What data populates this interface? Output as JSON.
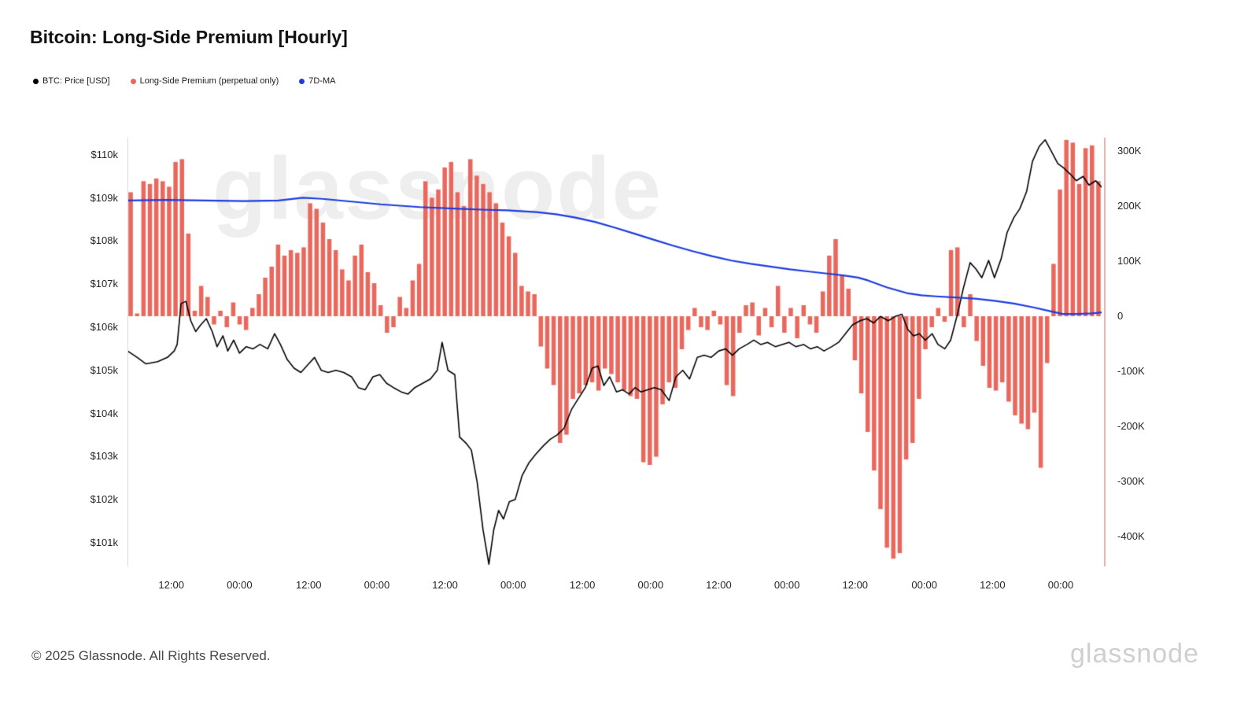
{
  "title": "Bitcoin: Long-Side Premium [Hourly]",
  "watermark": "glassnode",
  "footer": {
    "copyright": "© 2025 Glassnode. All Rights Reserved.",
    "brand": "glassnode"
  },
  "chart_data": {
    "type": "mixed",
    "title": "Bitcoin: Long-Side Premium [Hourly]",
    "grid": false,
    "legend_position": "top-left",
    "left_axis": {
      "title": "BTC Price [USD, thousands]",
      "min": 100.45,
      "max": 110.4,
      "ticks": [
        {
          "label": "$110k",
          "value": 110
        },
        {
          "label": "$109k",
          "value": 109
        },
        {
          "label": "$108k",
          "value": 108
        },
        {
          "label": "$107k",
          "value": 107
        },
        {
          "label": "$106k",
          "value": 106
        },
        {
          "label": "$105k",
          "value": 105
        },
        {
          "label": "$104k",
          "value": 104
        },
        {
          "label": "$103k",
          "value": 103
        },
        {
          "label": "$102k",
          "value": 102
        },
        {
          "label": "$101k",
          "value": 101
        }
      ]
    },
    "right_axis": {
      "title": "Long-Side Premium [K USD]",
      "min": -454,
      "max": 324,
      "ticks": [
        {
          "label": "300K",
          "value": 300
        },
        {
          "label": "200K",
          "value": 200
        },
        {
          "label": "100K",
          "value": 100
        },
        {
          "label": "0",
          "value": 0
        },
        {
          "label": "-100K",
          "value": -100
        },
        {
          "label": "-200K",
          "value": -200
        },
        {
          "label": "-300K",
          "value": -300
        },
        {
          "label": "-400K",
          "value": -400
        }
      ]
    },
    "x_axis": {
      "ticks": [
        {
          "label": "12:00",
          "pos": 0.045
        },
        {
          "label": "00:00",
          "pos": 0.115
        },
        {
          "label": "12:00",
          "pos": 0.186
        },
        {
          "label": "00:00",
          "pos": 0.256
        },
        {
          "label": "12:00",
          "pos": 0.326
        },
        {
          "label": "00:00",
          "pos": 0.396
        },
        {
          "label": "12:00",
          "pos": 0.467
        },
        {
          "label": "00:00",
          "pos": 0.537
        },
        {
          "label": "12:00",
          "pos": 0.607
        },
        {
          "label": "00:00",
          "pos": 0.677
        },
        {
          "label": "12:00",
          "pos": 0.747
        },
        {
          "label": "00:00",
          "pos": 0.818
        },
        {
          "label": "12:00",
          "pos": 0.888
        },
        {
          "label": "00:00",
          "pos": 0.958
        }
      ]
    },
    "series": [
      {
        "name": "BTC: Price [USD]",
        "type": "line",
        "axis": "left",
        "color": "#000000",
        "width": 1.6,
        "points": [
          [
            0,
            105.45
          ],
          [
            0.01,
            105.3
          ],
          [
            0.019,
            105.15
          ],
          [
            0.031,
            105.2
          ],
          [
            0.041,
            105.3
          ],
          [
            0.048,
            105.45
          ],
          [
            0.051,
            105.6
          ],
          [
            0.055,
            106.55
          ],
          [
            0.06,
            106.6
          ],
          [
            0.065,
            106.15
          ],
          [
            0.07,
            105.9
          ],
          [
            0.075,
            106.05
          ],
          [
            0.081,
            106.2
          ],
          [
            0.087,
            105.9
          ],
          [
            0.092,
            105.55
          ],
          [
            0.098,
            105.8
          ],
          [
            0.103,
            105.45
          ],
          [
            0.109,
            105.7
          ],
          [
            0.115,
            105.4
          ],
          [
            0.122,
            105.55
          ],
          [
            0.129,
            105.5
          ],
          [
            0.136,
            105.6
          ],
          [
            0.144,
            105.5
          ],
          [
            0.151,
            105.85
          ],
          [
            0.157,
            105.6
          ],
          [
            0.164,
            105.25
          ],
          [
            0.171,
            105.05
          ],
          [
            0.178,
            104.95
          ],
          [
            0.186,
            105.15
          ],
          [
            0.192,
            105.3
          ],
          [
            0.199,
            105.0
          ],
          [
            0.206,
            104.95
          ],
          [
            0.214,
            105.0
          ],
          [
            0.222,
            104.95
          ],
          [
            0.23,
            104.85
          ],
          [
            0.237,
            104.6
          ],
          [
            0.244,
            104.55
          ],
          [
            0.252,
            104.85
          ],
          [
            0.259,
            104.9
          ],
          [
            0.266,
            104.7
          ],
          [
            0.273,
            104.6
          ],
          [
            0.281,
            104.5
          ],
          [
            0.288,
            104.45
          ],
          [
            0.295,
            104.6
          ],
          [
            0.303,
            104.7
          ],
          [
            0.311,
            104.8
          ],
          [
            0.318,
            105.0
          ],
          [
            0.323,
            105.65
          ],
          [
            0.329,
            105.0
          ],
          [
            0.336,
            104.9
          ],
          [
            0.341,
            103.45
          ],
          [
            0.348,
            103.3
          ],
          [
            0.353,
            103.15
          ],
          [
            0.359,
            102.4
          ],
          [
            0.365,
            101.3
          ],
          [
            0.371,
            100.5
          ],
          [
            0.376,
            101.3
          ],
          [
            0.381,
            101.75
          ],
          [
            0.386,
            101.55
          ],
          [
            0.392,
            101.95
          ],
          [
            0.398,
            102.0
          ],
          [
            0.405,
            102.55
          ],
          [
            0.412,
            102.85
          ],
          [
            0.419,
            103.05
          ],
          [
            0.427,
            103.25
          ],
          [
            0.434,
            103.4
          ],
          [
            0.441,
            103.5
          ],
          [
            0.448,
            103.65
          ],
          [
            0.456,
            104.1
          ],
          [
            0.463,
            104.35
          ],
          [
            0.47,
            104.6
          ],
          [
            0.477,
            105.05
          ],
          [
            0.483,
            105.1
          ],
          [
            0.489,
            104.65
          ],
          [
            0.495,
            104.85
          ],
          [
            0.502,
            104.5
          ],
          [
            0.508,
            104.55
          ],
          [
            0.515,
            104.45
          ],
          [
            0.521,
            104.6
          ],
          [
            0.527,
            104.5
          ],
          [
            0.534,
            104.55
          ],
          [
            0.541,
            104.6
          ],
          [
            0.548,
            104.55
          ],
          [
            0.556,
            104.3
          ],
          [
            0.563,
            104.85
          ],
          [
            0.57,
            105.0
          ],
          [
            0.577,
            104.8
          ],
          [
            0.585,
            105.3
          ],
          [
            0.592,
            105.35
          ],
          [
            0.599,
            105.3
          ],
          [
            0.607,
            105.45
          ],
          [
            0.614,
            105.5
          ],
          [
            0.621,
            105.35
          ],
          [
            0.628,
            105.5
          ],
          [
            0.636,
            105.6
          ],
          [
            0.643,
            105.7
          ],
          [
            0.65,
            105.6
          ],
          [
            0.657,
            105.65
          ],
          [
            0.665,
            105.55
          ],
          [
            0.672,
            105.6
          ],
          [
            0.679,
            105.65
          ],
          [
            0.686,
            105.55
          ],
          [
            0.694,
            105.6
          ],
          [
            0.701,
            105.5
          ],
          [
            0.708,
            105.55
          ],
          [
            0.715,
            105.45
          ],
          [
            0.723,
            105.55
          ],
          [
            0.73,
            105.65
          ],
          [
            0.737,
            105.85
          ],
          [
            0.744,
            106.05
          ],
          [
            0.752,
            106.15
          ],
          [
            0.759,
            106.2
          ],
          [
            0.766,
            106.1
          ],
          [
            0.773,
            106.25
          ],
          [
            0.781,
            106.15
          ],
          [
            0.788,
            106.25
          ],
          [
            0.795,
            106.3
          ],
          [
            0.801,
            105.95
          ],
          [
            0.807,
            105.8
          ],
          [
            0.813,
            105.85
          ],
          [
            0.819,
            105.7
          ],
          [
            0.826,
            105.85
          ],
          [
            0.832,
            105.6
          ],
          [
            0.839,
            105.5
          ],
          [
            0.845,
            105.7
          ],
          [
            0.852,
            106.3
          ],
          [
            0.858,
            106.9
          ],
          [
            0.865,
            107.5
          ],
          [
            0.871,
            107.35
          ],
          [
            0.877,
            107.15
          ],
          [
            0.884,
            107.55
          ],
          [
            0.89,
            107.15
          ],
          [
            0.897,
            107.6
          ],
          [
            0.903,
            108.2
          ],
          [
            0.91,
            108.55
          ],
          [
            0.916,
            108.75
          ],
          [
            0.923,
            109.15
          ],
          [
            0.929,
            109.85
          ],
          [
            0.936,
            110.2
          ],
          [
            0.942,
            110.35
          ],
          [
            0.948,
            110.1
          ],
          [
            0.955,
            109.8
          ],
          [
            0.961,
            109.7
          ],
          [
            0.968,
            109.55
          ],
          [
            0.974,
            109.4
          ],
          [
            0.981,
            109.5
          ],
          [
            0.987,
            109.3
          ],
          [
            0.994,
            109.4
          ],
          [
            1,
            109.25
          ]
        ]
      },
      {
        "name": "Long-Side Premium (perpetual only)",
        "type": "bar",
        "axis": "right",
        "color": "#e9685e",
        "values": [
          225,
          5,
          245,
          240,
          250,
          245,
          235,
          280,
          285,
          150,
          10,
          55,
          35,
          -15,
          10,
          -20,
          25,
          -15,
          -25,
          15,
          40,
          70,
          90,
          130,
          110,
          120,
          115,
          125,
          205,
          195,
          170,
          140,
          120,
          85,
          65,
          110,
          130,
          80,
          60,
          20,
          -30,
          -20,
          35,
          15,
          65,
          95,
          245,
          215,
          230,
          270,
          280,
          225,
          200,
          285,
          255,
          240,
          225,
          205,
          170,
          145,
          115,
          55,
          45,
          40,
          -55,
          -95,
          -125,
          -230,
          -215,
          -150,
          -140,
          -125,
          -120,
          -135,
          -95,
          -105,
          -120,
          -135,
          -145,
          -150,
          -265,
          -270,
          -255,
          -160,
          -120,
          -130,
          -60,
          -25,
          15,
          -20,
          -25,
          10,
          -15,
          -125,
          -145,
          -30,
          20,
          25,
          -35,
          15,
          -20,
          55,
          -30,
          15,
          -40,
          20,
          -15,
          -30,
          45,
          110,
          140,
          75,
          50,
          -80,
          -140,
          -210,
          -280,
          -350,
          -420,
          -440,
          -430,
          -260,
          -230,
          -150,
          -60,
          -20,
          15,
          -10,
          120,
          125,
          -20,
          40,
          -45,
          -90,
          -130,
          -135,
          -120,
          -155,
          -180,
          -195,
          -205,
          -175,
          -275,
          -85,
          95,
          230,
          320,
          315,
          240,
          305,
          310,
          245
        ]
      },
      {
        "name": "7D-MA",
        "type": "line",
        "axis": "right",
        "color": "#1d3ce0",
        "width": 2.2,
        "points": [
          [
            0,
            210
          ],
          [
            0.04,
            211
          ],
          [
            0.08,
            210
          ],
          [
            0.12,
            209
          ],
          [
            0.155,
            210
          ],
          [
            0.18,
            215
          ],
          [
            0.2,
            213
          ],
          [
            0.23,
            208
          ],
          [
            0.26,
            203
          ],
          [
            0.3,
            198
          ],
          [
            0.34,
            195
          ],
          [
            0.37,
            193
          ],
          [
            0.39,
            192
          ],
          [
            0.42,
            189
          ],
          [
            0.44,
            185
          ],
          [
            0.46,
            179
          ],
          [
            0.48,
            171
          ],
          [
            0.5,
            161
          ],
          [
            0.52,
            150
          ],
          [
            0.54,
            139
          ],
          [
            0.56,
            128
          ],
          [
            0.58,
            118
          ],
          [
            0.6,
            109
          ],
          [
            0.62,
            101
          ],
          [
            0.64,
            95
          ],
          [
            0.66,
            90
          ],
          [
            0.68,
            85
          ],
          [
            0.7,
            81
          ],
          [
            0.72,
            77
          ],
          [
            0.735,
            74
          ],
          [
            0.75,
            70
          ],
          [
            0.76,
            65
          ],
          [
            0.78,
            52
          ],
          [
            0.8,
            42
          ],
          [
            0.815,
            38
          ],
          [
            0.83,
            36
          ],
          [
            0.85,
            34
          ],
          [
            0.87,
            32
          ],
          [
            0.89,
            28
          ],
          [
            0.91,
            23
          ],
          [
            0.93,
            16
          ],
          [
            0.95,
            8
          ],
          [
            0.96,
            4
          ],
          [
            0.975,
            4
          ],
          [
            0.99,
            5
          ],
          [
            1,
            7
          ]
        ]
      }
    ]
  }
}
